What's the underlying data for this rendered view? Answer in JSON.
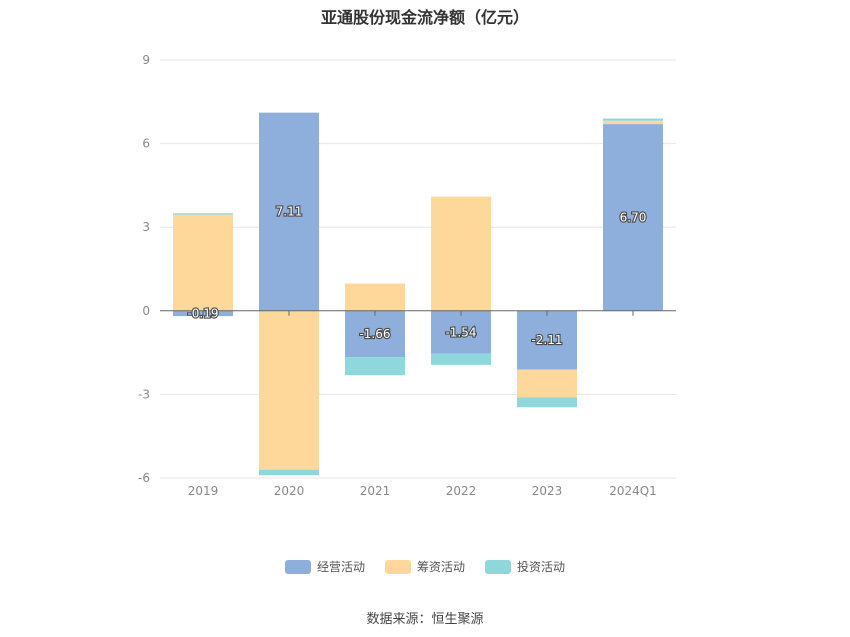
{
  "chart_data": {
    "type": "bar",
    "stacked": true,
    "title": "亚通股份现金流净额（亿元）",
    "categories": [
      "2019",
      "2020",
      "2021",
      "2022",
      "2023",
      "2024Q1"
    ],
    "series": [
      {
        "name": "经营活动",
        "color": "#8eaedb",
        "values": [
          -0.19,
          7.11,
          -1.66,
          -1.54,
          -2.11,
          6.7
        ]
      },
      {
        "name": "筹资活动",
        "color": "#fed89a",
        "values": [
          3.45,
          -5.7,
          0.98,
          4.1,
          -1.0,
          0.12
        ]
      },
      {
        "name": "投资活动",
        "color": "#8ed8dc",
        "values": [
          0.05,
          -0.2,
          -0.65,
          -0.4,
          -0.35,
          0.08
        ]
      }
    ],
    "data_labels": [
      "-0.19",
      "7.11",
      "-1.66",
      "-1.54",
      "-2.11",
      "6.70"
    ],
    "yticks": [
      9,
      6,
      3,
      0,
      -3,
      -6
    ],
    "ylim": [
      -6,
      9
    ],
    "grid": true,
    "legend_position": "bottom",
    "source": "数据来源：恒生聚源"
  }
}
